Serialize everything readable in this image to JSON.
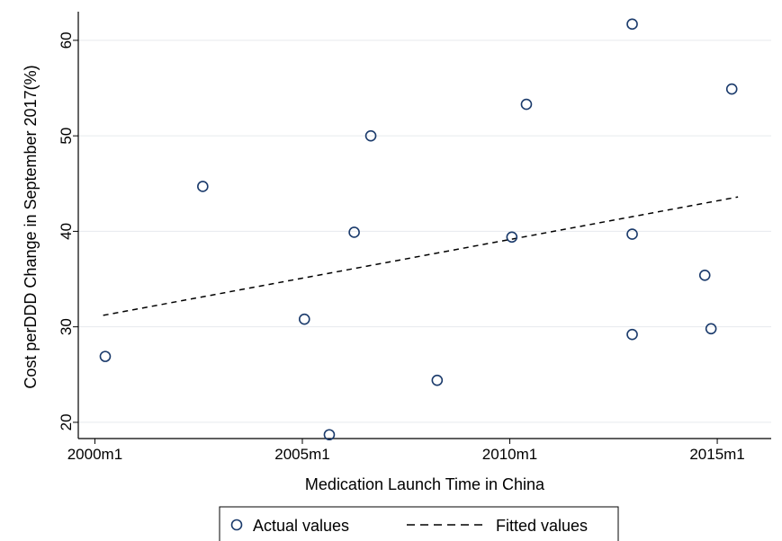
{
  "chart_data": {
    "type": "scatter",
    "xlabel": "Medication Launch Time in China",
    "ylabel": "Cost perDDD Change in September 2017(%)",
    "x_ticks": [
      {
        "value": 2000.0,
        "label": "2000m1"
      },
      {
        "value": 2005.0,
        "label": "2005m1"
      },
      {
        "value": 2010.0,
        "label": "2010m1"
      },
      {
        "value": 2015.0,
        "label": "2015m1"
      }
    ],
    "y_ticks": [
      20,
      30,
      40,
      50,
      60
    ],
    "xlim": [
      1999.6,
      2016.3
    ],
    "ylim": [
      18.3,
      63.0
    ],
    "grid": "horizontal",
    "series": [
      {
        "name": "Actual values",
        "marker": "hollow-circle",
        "color": "#1a3a6b",
        "points": [
          {
            "x": 2000.25,
            "y": 26.9
          },
          {
            "x": 2002.6,
            "y": 44.7
          },
          {
            "x": 2005.05,
            "y": 30.8
          },
          {
            "x": 2005.65,
            "y": 18.7
          },
          {
            "x": 2006.25,
            "y": 39.9
          },
          {
            "x": 2006.65,
            "y": 50.0
          },
          {
            "x": 2008.25,
            "y": 24.4
          },
          {
            "x": 2010.05,
            "y": 39.4
          },
          {
            "x": 2010.4,
            "y": 53.3
          },
          {
            "x": 2012.95,
            "y": 61.7
          },
          {
            "x": 2012.95,
            "y": 39.7
          },
          {
            "x": 2012.95,
            "y": 29.2
          },
          {
            "x": 2014.7,
            "y": 35.4
          },
          {
            "x": 2014.85,
            "y": 29.8
          },
          {
            "x": 2015.35,
            "y": 54.9
          }
        ]
      },
      {
        "name": "Fitted values",
        "style": "dashed-line",
        "color": "#000000",
        "points": [
          {
            "x": 2000.2,
            "y": 31.2
          },
          {
            "x": 2015.5,
            "y": 43.6
          }
        ]
      }
    ],
    "legend": {
      "position": "bottom",
      "entries": [
        "Actual values",
        "Fitted values"
      ]
    }
  }
}
